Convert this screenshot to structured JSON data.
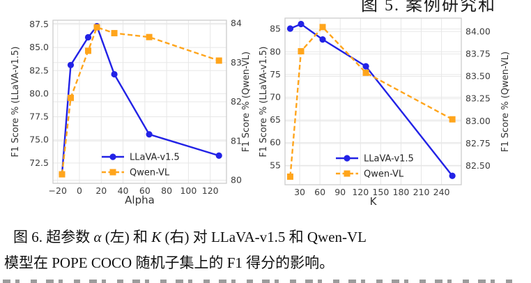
{
  "page": {
    "top_clipped_text": "图 5. 案例研究和",
    "caption": {
      "figure_label": "图 6.",
      "line1_segments": [
        {
          "text": "图 6. 超参数 ",
          "italic": false
        },
        {
          "text": "α",
          "italic": true
        },
        {
          "text": " (左) 和 ",
          "italic": false
        },
        {
          "text": "K",
          "italic": true
        },
        {
          "text": " (右) 对 LLaVA-v1.5 和 Qwen-VL",
          "italic": false
        }
      ],
      "line2": "模型在 POPE COCO 随机子集上的 F1 得分的影响。"
    }
  },
  "chart_data": [
    {
      "type": "line",
      "title": "",
      "xlabel": "Alpha",
      "ylabel_left": "F1 Score % (LLaVA-v1.5)",
      "ylabel_right": "F1 Score % (Qwen-VL)",
      "grid": true,
      "legend": {
        "entries": [
          "LLaVA-v1.5",
          "Qwen-VL"
        ],
        "position": "lower left inside plot"
      },
      "x_range": [
        -24.3,
        134.9
      ],
      "y_left_range": [
        70.3,
        87.95
      ],
      "y_right_range": [
        79.92,
        84.08
      ],
      "x_ticks": {
        "values": [
          -20,
          0,
          20,
          40,
          60,
          80,
          100,
          120
        ],
        "labels": [
          "−20",
          "0",
          "20",
          "40",
          "60",
          "80",
          "100",
          "120"
        ]
      },
      "y_left_ticks": {
        "values": [
          72.5,
          75.0,
          77.5,
          80.0,
          82.5,
          85.0,
          87.5
        ],
        "labels": [
          "72.5",
          "75.0",
          "77.5",
          "80.0",
          "82.5",
          "85.0",
          "87.5"
        ]
      },
      "y_right_ticks": {
        "values": [
          80,
          81,
          82,
          83,
          84
        ],
        "labels": [
          "80",
          "81",
          "82",
          "83",
          "84"
        ]
      },
      "x": [
        -16,
        -8,
        8,
        16,
        32,
        64,
        128
      ],
      "series": [
        {
          "name": "LLaVA-v1.5",
          "axis": "left",
          "color": "#2222e6",
          "line_style": "solid",
          "marker": "circle",
          "values": [
            71.3,
            83.1,
            86.1,
            87.3,
            82.1,
            75.6,
            73.3
          ]
        },
        {
          "name": "Qwen-VL",
          "axis": "right",
          "color": "#ffa51c",
          "line_style": "dashed",
          "marker": "square",
          "values": [
            80.15,
            82.1,
            83.3,
            83.9,
            83.75,
            83.65,
            83.05
          ]
        }
      ],
      "style": {
        "grid_color": "#e7e7e7",
        "spine_color": "#c9c9c9",
        "tick_color": "#3d3d3d",
        "label_color": "#333333"
      }
    },
    {
      "type": "line",
      "title": "",
      "xlabel": "K",
      "ylabel_left": "F1 Score % (LLaVA-v1.5)",
      "ylabel_right": "F1 Score % (Qwen-VL)",
      "grid": true,
      "legend": {
        "entries": [
          "LLaVA-v1.5",
          "Qwen-VL"
        ],
        "position": "lower left inside plot"
      },
      "x_range": [
        8.3,
        269.3
      ],
      "y_left_range": [
        50.75,
        87.4
      ],
      "y_right_range": [
        82.29,
        84.15
      ],
      "x_ticks": {
        "values": [
          30,
          60,
          90,
          120,
          150,
          180,
          210,
          240
        ],
        "labels": [
          "30",
          "60",
          "90",
          "120",
          "150",
          "180",
          "210",
          "240"
        ]
      },
      "y_left_ticks": {
        "values": [
          55,
          60,
          65,
          70,
          75,
          80,
          85
        ],
        "labels": [
          "55",
          "60",
          "65",
          "70",
          "75",
          "80",
          "85"
        ]
      },
      "y_right_ticks": {
        "values": [
          82.5,
          82.75,
          83.0,
          83.25,
          83.5,
          83.75,
          84.0
        ],
        "labels": [
          "82.50",
          "82.75",
          "83.00",
          "83.25",
          "83.50",
          "83.75",
          "84.00"
        ]
      },
      "x": [
        16,
        32,
        64,
        128,
        256
      ],
      "series": [
        {
          "name": "LLaVA-v1.5",
          "axis": "left",
          "color": "#2222e6",
          "line_style": "solid",
          "marker": "circle",
          "values": [
            85.1,
            86.1,
            82.7,
            76.8,
            52.7
          ]
        },
        {
          "name": "Qwen-VL",
          "axis": "right",
          "color": "#ffa51c",
          "line_style": "dashed",
          "marker": "square",
          "values": [
            82.38,
            83.78,
            84.05,
            83.54,
            83.02
          ]
        }
      ],
      "style": {
        "grid_color": "#e7e7e7",
        "spine_color": "#c9c9c9",
        "tick_color": "#3d3d3d",
        "label_color": "#333333"
      }
    }
  ]
}
